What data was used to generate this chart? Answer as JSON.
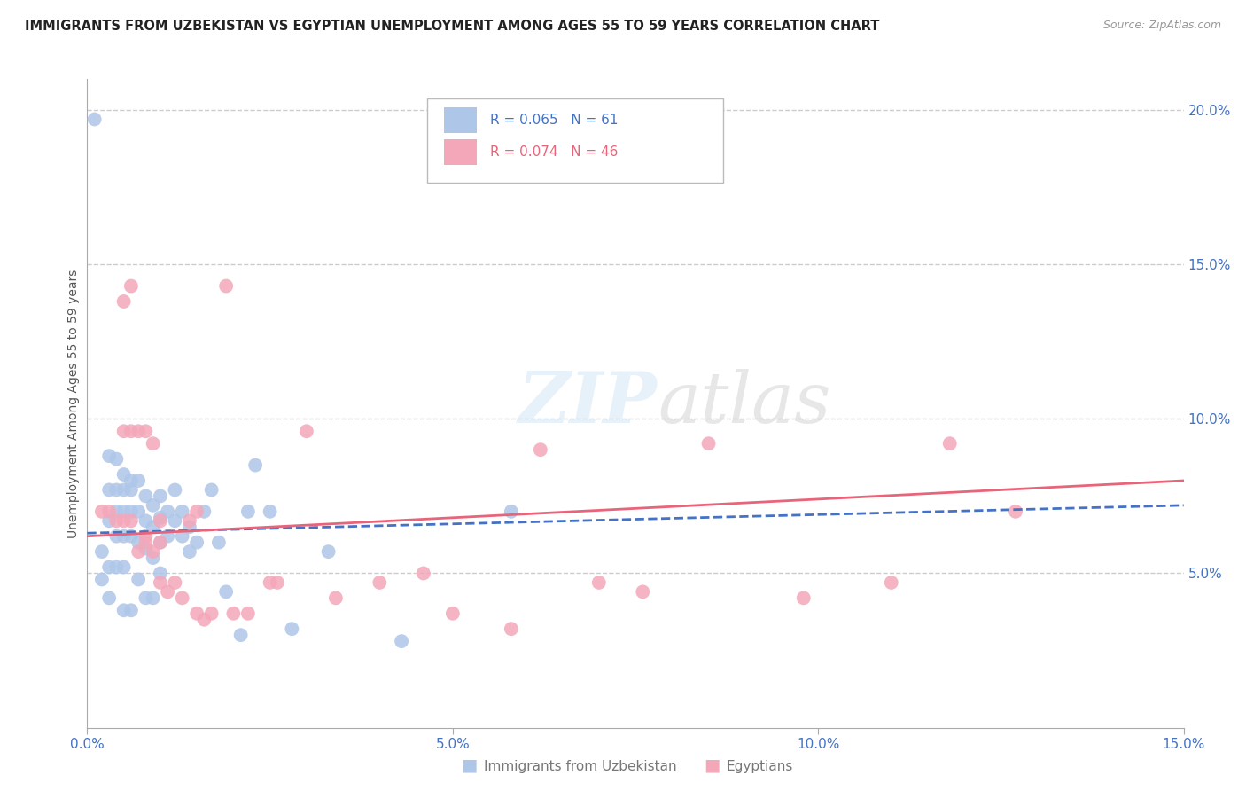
{
  "title": "IMMIGRANTS FROM UZBEKISTAN VS EGYPTIAN UNEMPLOYMENT AMONG AGES 55 TO 59 YEARS CORRELATION CHART",
  "source": "Source: ZipAtlas.com",
  "ylabel": "Unemployment Among Ages 55 to 59 years",
  "xlim": [
    0.0,
    0.15
  ],
  "ylim": [
    0.0,
    0.21
  ],
  "xticks": [
    0.0,
    0.05,
    0.1,
    0.15
  ],
  "xtick_labels": [
    "0.0%",
    "5.0%",
    "10.0%",
    "15.0%"
  ],
  "yticks_right": [
    0.05,
    0.1,
    0.15,
    0.2
  ],
  "ytick_labels_right": [
    "5.0%",
    "10.0%",
    "15.0%",
    "20.0%"
  ],
  "grid_color": "#cccccc",
  "background_color": "#ffffff",
  "uzbekistan_color": "#aec6e8",
  "egypt_color": "#f4a7b9",
  "uzbekistan_line_color": "#4472c4",
  "egypt_line_color": "#e8647a",
  "legend_R1": "0.065",
  "legend_N1": "61",
  "legend_R2": "0.074",
  "legend_N2": "46",
  "uzbekistan_scatter_x": [
    0.001,
    0.002,
    0.002,
    0.003,
    0.003,
    0.003,
    0.003,
    0.003,
    0.004,
    0.004,
    0.004,
    0.004,
    0.004,
    0.005,
    0.005,
    0.005,
    0.005,
    0.005,
    0.005,
    0.006,
    0.006,
    0.006,
    0.006,
    0.006,
    0.007,
    0.007,
    0.007,
    0.007,
    0.008,
    0.008,
    0.008,
    0.008,
    0.009,
    0.009,
    0.009,
    0.009,
    0.01,
    0.01,
    0.01,
    0.01,
    0.011,
    0.011,
    0.012,
    0.012,
    0.013,
    0.013,
    0.014,
    0.014,
    0.015,
    0.016,
    0.017,
    0.018,
    0.019,
    0.021,
    0.023,
    0.025,
    0.028,
    0.033,
    0.022,
    0.058,
    0.043
  ],
  "uzbekistan_scatter_y": [
    0.197,
    0.057,
    0.048,
    0.088,
    0.077,
    0.067,
    0.052,
    0.042,
    0.087,
    0.077,
    0.07,
    0.062,
    0.052,
    0.082,
    0.077,
    0.07,
    0.062,
    0.052,
    0.038,
    0.08,
    0.077,
    0.07,
    0.062,
    0.038,
    0.08,
    0.07,
    0.06,
    0.048,
    0.075,
    0.067,
    0.058,
    0.042,
    0.072,
    0.065,
    0.055,
    0.042,
    0.075,
    0.068,
    0.06,
    0.05,
    0.07,
    0.062,
    0.077,
    0.067,
    0.07,
    0.062,
    0.065,
    0.057,
    0.06,
    0.07,
    0.077,
    0.06,
    0.044,
    0.03,
    0.085,
    0.07,
    0.032,
    0.057,
    0.07,
    0.07,
    0.028
  ],
  "egypt_scatter_x": [
    0.002,
    0.003,
    0.004,
    0.005,
    0.005,
    0.005,
    0.006,
    0.006,
    0.007,
    0.007,
    0.008,
    0.008,
    0.009,
    0.009,
    0.01,
    0.01,
    0.011,
    0.012,
    0.013,
    0.014,
    0.015,
    0.016,
    0.017,
    0.019,
    0.022,
    0.026,
    0.03,
    0.034,
    0.04,
    0.046,
    0.05,
    0.058,
    0.062,
    0.07,
    0.076,
    0.085,
    0.098,
    0.11,
    0.118,
    0.127,
    0.006,
    0.008,
    0.01,
    0.015,
    0.02,
    0.025
  ],
  "egypt_scatter_y": [
    0.07,
    0.07,
    0.067,
    0.138,
    0.096,
    0.067,
    0.143,
    0.096,
    0.096,
    0.057,
    0.096,
    0.062,
    0.092,
    0.057,
    0.067,
    0.06,
    0.044,
    0.047,
    0.042,
    0.067,
    0.07,
    0.035,
    0.037,
    0.143,
    0.037,
    0.047,
    0.096,
    0.042,
    0.047,
    0.05,
    0.037,
    0.032,
    0.09,
    0.047,
    0.044,
    0.092,
    0.042,
    0.047,
    0.092,
    0.07,
    0.067,
    0.06,
    0.047,
    0.037,
    0.037,
    0.047
  ],
  "uzbekistan_trend_x": [
    0.0,
    0.15
  ],
  "uzbekistan_trend_y": [
    0.063,
    0.072
  ],
  "egypt_trend_x": [
    0.0,
    0.15
  ],
  "egypt_trend_y": [
    0.062,
    0.08
  ]
}
